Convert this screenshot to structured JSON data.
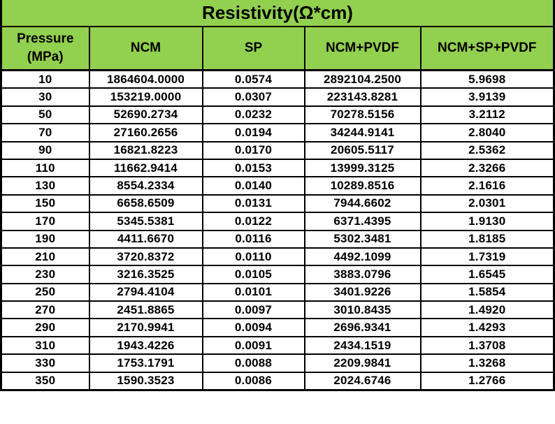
{
  "style": {
    "header_bg": "#92D050",
    "border_color": "#000000",
    "cell_bg": "#FFFFFF",
    "text_color": "#000000"
  },
  "chart_data": {
    "type": "table",
    "title": "Resistivity(Ω*cm)",
    "columns": [
      "Pressure\n(MPa)",
      "NCM",
      "SP",
      "NCM+PVDF",
      "NCM+SP+PVDF"
    ],
    "xlabel": "Pressure (MPa)",
    "ylabel": "Resistivity (Ω*cm)",
    "rows": [
      [
        "10",
        "1864604.0000",
        "0.0574",
        "2892104.2500",
        "5.9698"
      ],
      [
        "30",
        "153219.0000",
        "0.0307",
        "223143.8281",
        "3.9139"
      ],
      [
        "50",
        "52690.2734",
        "0.0232",
        "70278.5156",
        "3.2112"
      ],
      [
        "70",
        "27160.2656",
        "0.0194",
        "34244.9141",
        "2.8040"
      ],
      [
        "90",
        "16821.8223",
        "0.0170",
        "20605.5117",
        "2.5362"
      ],
      [
        "110",
        "11662.9414",
        "0.0153",
        "13999.3125",
        "2.3266"
      ],
      [
        "130",
        "8554.2334",
        "0.0140",
        "10289.8516",
        "2.1616"
      ],
      [
        "150",
        "6658.6509",
        "0.0131",
        "7944.6602",
        "2.0301"
      ],
      [
        "170",
        "5345.5381",
        "0.0122",
        "6371.4395",
        "1.9130"
      ],
      [
        "190",
        "4411.6670",
        "0.0116",
        "5302.3481",
        "1.8185"
      ],
      [
        "210",
        "3720.8372",
        "0.0110",
        "4492.1099",
        "1.7319"
      ],
      [
        "230",
        "3216.3525",
        "0.0105",
        "3883.0796",
        "1.6545"
      ],
      [
        "250",
        "2794.4104",
        "0.0101",
        "3401.9226",
        "1.5854"
      ],
      [
        "270",
        "2451.8865",
        "0.0097",
        "3010.8435",
        "1.4920"
      ],
      [
        "290",
        "2170.9941",
        "0.0094",
        "2696.9341",
        "1.4293"
      ],
      [
        "310",
        "1943.4226",
        "0.0091",
        "2434.1519",
        "1.3708"
      ],
      [
        "330",
        "1753.1791",
        "0.0088",
        "2209.9841",
        "1.3268"
      ],
      [
        "350",
        "1590.3523",
        "0.0086",
        "2024.6746",
        "1.2766"
      ]
    ]
  }
}
